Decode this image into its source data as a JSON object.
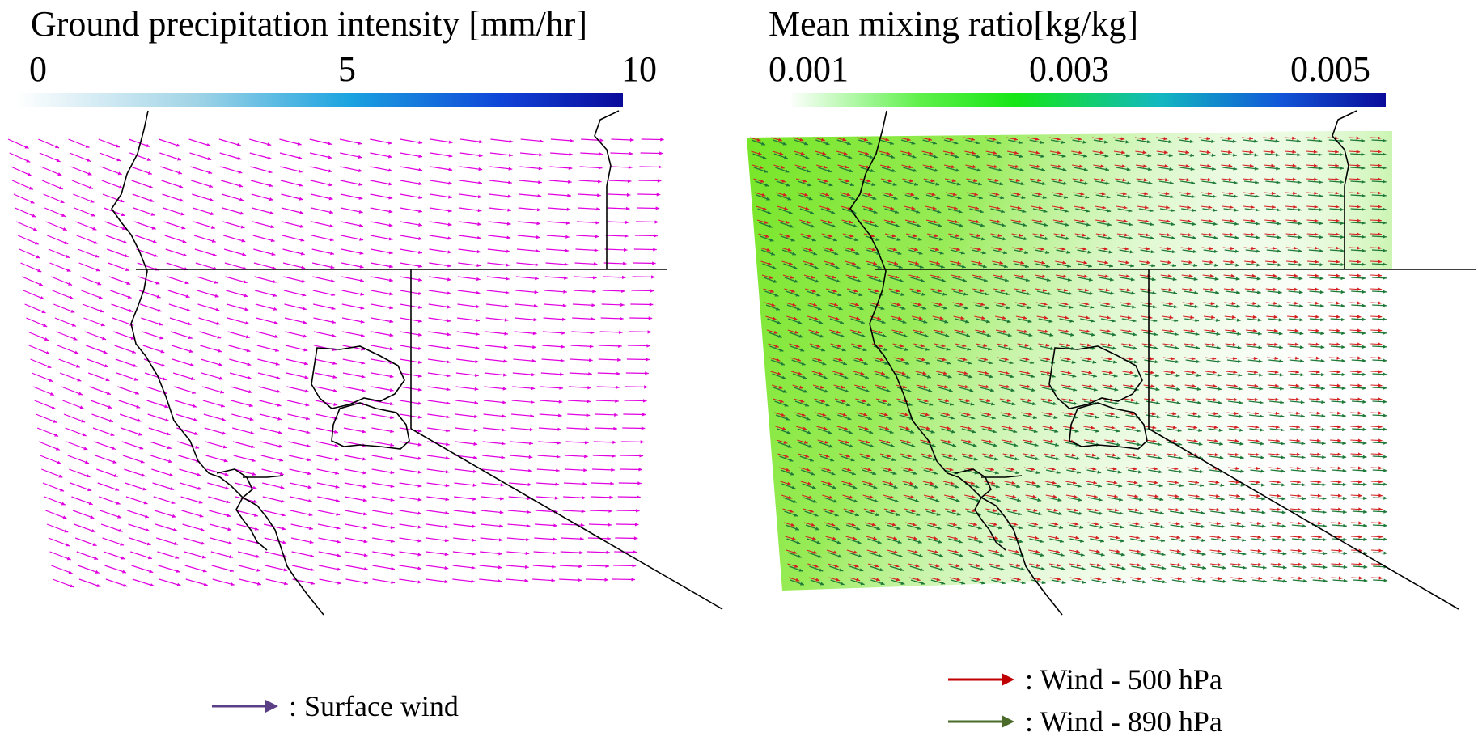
{
  "left_panel": {
    "title": "Ground precipitation intensity [mm/hr]",
    "colorbar": {
      "ticks": [
        "0",
        "5",
        "10"
      ],
      "colors": [
        "#ffffff",
        "#1aa3e0",
        "#0b0b9a"
      ]
    },
    "arrow_color": "#e000e0",
    "legend": {
      "label": ": Surface wind",
      "color": "#5a3f87"
    }
  },
  "right_panel": {
    "title": "Mean mixing ratio[kg/kg]",
    "colorbar": {
      "ticks": [
        "0.001",
        "0.003",
        "0.005"
      ],
      "colors": [
        "#ffffff",
        "#15e615",
        "#0b0b9a"
      ]
    },
    "wind_500_color": "#d42020",
    "wind_890_color": "#1f7a3a",
    "shade_color": "#6ee41a",
    "legend": [
      {
        "label": ": Wind - 500 hPa",
        "color": "#c00000"
      },
      {
        "label": ": Wind - 890 hPa",
        "color": "#4a6b2a"
      }
    ]
  }
}
